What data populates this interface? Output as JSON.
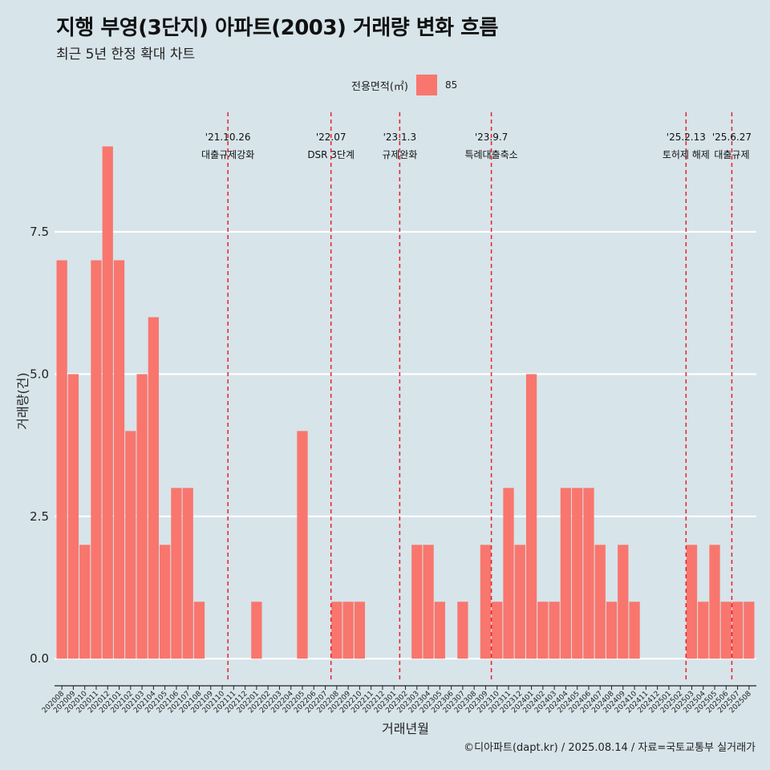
{
  "title": "지행 부영(3단지) 아파트(2003) 거래량 변화 흐름",
  "subtitle": "최근 5년 한정 확대 차트",
  "caption": "©디아파트(dapt.kr) / 2025.08.14 / 자료=국토교통부 실거래가",
  "legend": {
    "title": "전용면적(㎡)",
    "key": "85"
  },
  "colors": {
    "bar": "#f8766d",
    "background": "#d7e4ea",
    "grid": "#ffffff",
    "event_line": "#e8202a"
  },
  "chart_data": {
    "type": "bar",
    "xlabel": "거래년월",
    "ylabel": "거래량(건)",
    "ylim": [
      -0.42,
      9.6
    ],
    "yticks": [
      0,
      2.5,
      5,
      7.5
    ],
    "ytick_labels": [
      "0.0",
      "2.5",
      "5.0",
      "7.5"
    ],
    "grid": "horizontal major",
    "legend_position": "top",
    "categories": [
      "202008",
      "202009",
      "202010",
      "202011",
      "202012",
      "202101",
      "202102",
      "202103",
      "202104",
      "202105",
      "202106",
      "202107",
      "202108",
      "202109",
      "202110",
      "202111",
      "202112",
      "202201",
      "202202",
      "202203",
      "202204",
      "202205",
      "202206",
      "202207",
      "202208",
      "202209",
      "202210",
      "202211",
      "202212",
      "202301",
      "202302",
      "202303",
      "202304",
      "202305",
      "202306",
      "202307",
      "202308",
      "202309",
      "202310",
      "202311",
      "202312",
      "202401",
      "202402",
      "202403",
      "202404",
      "202405",
      "202406",
      "202407",
      "202408",
      "202409",
      "202410",
      "202411",
      "202412",
      "202501",
      "202502",
      "202503",
      "202504",
      "202505",
      "202506",
      "202507",
      "202508"
    ],
    "series": [
      {
        "name": "85",
        "values": [
          7,
          5,
          2,
          7,
          9,
          7,
          4,
          5,
          6,
          2,
          3,
          3,
          1,
          0,
          0,
          0,
          0,
          1,
          0,
          0,
          0,
          4,
          0,
          0,
          1,
          1,
          1,
          0,
          0,
          0,
          0,
          2,
          2,
          1,
          0,
          1,
          0,
          2,
          1,
          3,
          2,
          5,
          1,
          1,
          3,
          3,
          3,
          2,
          1,
          2,
          1,
          0,
          0,
          0,
          0,
          2,
          1,
          2,
          1,
          1,
          1
        ]
      }
    ],
    "events": [
      {
        "date": "'21.10.26",
        "label": "대출규제강화",
        "x_index": 14.5
      },
      {
        "date": "'22.07",
        "label": "DSR 3단계",
        "x_index": 23.5
      },
      {
        "date": "'23.1.3",
        "label": "규제완화",
        "x_index": 29.5
      },
      {
        "date": "'23.9.7",
        "label": "특례대출축소",
        "x_index": 37.5
      },
      {
        "date": "'25.2.13",
        "label": "토허제 해제",
        "x_index": 54.5
      },
      {
        "date": "'25.6.27",
        "label": "대출규제",
        "x_index": 58.5
      }
    ]
  }
}
